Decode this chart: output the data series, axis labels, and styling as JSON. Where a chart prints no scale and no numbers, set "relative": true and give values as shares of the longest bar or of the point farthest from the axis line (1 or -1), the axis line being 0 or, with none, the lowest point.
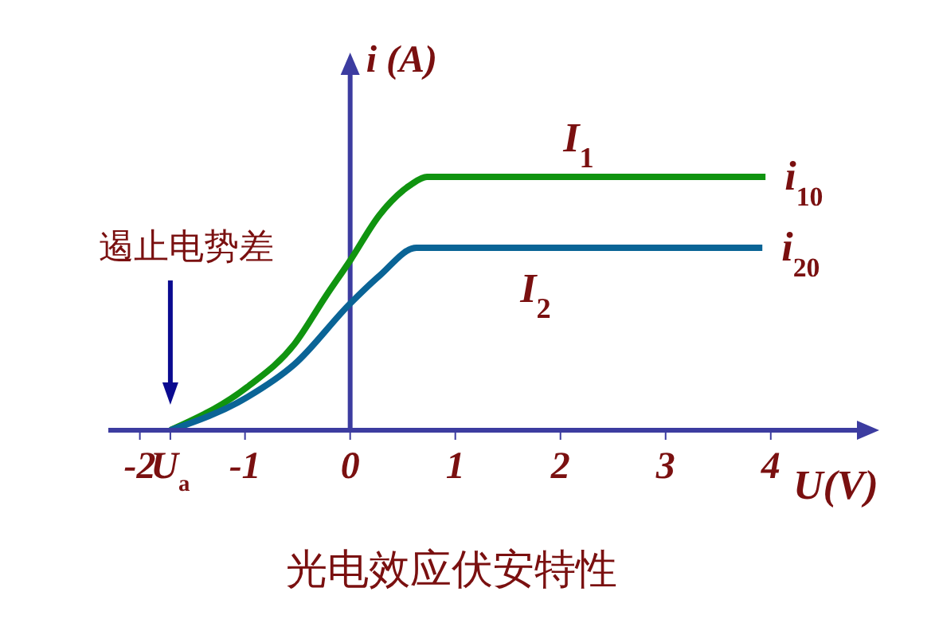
{
  "chart_data": {
    "type": "line",
    "title": "光电效应伏安特性",
    "xlabel": "U(V)",
    "ylabel": "i (A)",
    "relative": true,
    "xlim": [
      -2.3,
      4.85
    ],
    "xticks": [
      -2,
      {
        "value": -1.71,
        "label": "U$_{a}$"
      },
      -1,
      0,
      1,
      2,
      3,
      4
    ],
    "series": [
      {
        "name": "I$_{1}$",
        "color": "#109410",
        "x": [
          -1.71,
          -0.98,
          -0.53,
          -0.23,
          0,
          0.28,
          0.58,
          0.73,
          3.95
        ],
        "values": [
          0,
          0.17,
          0.34,
          0.53,
          0.67,
          0.85,
          0.97,
          1,
          1
        ]
      },
      {
        "name": "I$_{2}$",
        "color": "#0a6496",
        "x": [
          -1.71,
          -0.98,
          -0.53,
          0,
          0.28,
          0.63,
          3.92
        ],
        "values": [
          0,
          0.13,
          0.26,
          0.5,
          0.61,
          0.72,
          0.72
        ]
      }
    ],
    "ref_lines": [
      {
        "axis": "x",
        "value": 0,
        "color": "#3c3ca0"
      }
    ],
    "annotations": [
      "遏止电势差",
      {
        "text": "i$_{10}$",
        "x": 3.95,
        "y": 1
      },
      {
        "text": "i$_{20}$",
        "x": 3.92,
        "y": 0.72
      }
    ],
    "marker": "none",
    "line_style": "solid"
  }
}
